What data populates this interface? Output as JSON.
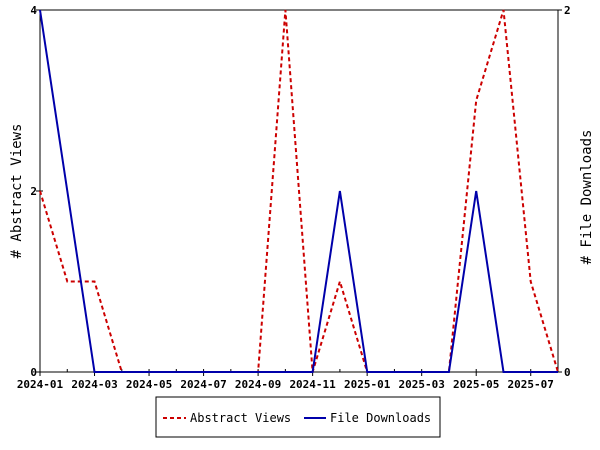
{
  "chart_data": {
    "type": "line",
    "x": [
      "2024-01",
      "2024-02",
      "2024-03",
      "2024-04",
      "2024-05",
      "2024-06",
      "2024-07",
      "2024-08",
      "2024-09",
      "2024-10",
      "2024-11",
      "2024-12",
      "2025-01",
      "2025-02",
      "2025-03",
      "2025-04",
      "2025-05",
      "2025-06",
      "2025-07",
      "2025-08"
    ],
    "x_ticks": [
      "2024-01",
      "2024-03",
      "2024-05",
      "2024-07",
      "2024-09",
      "2024-11",
      "2025-01",
      "2025-03",
      "2025-05",
      "2025-07"
    ],
    "y_left": {
      "label": "# Abstract Views",
      "ylim": [
        0,
        4
      ],
      "ticks": [
        "0",
        "2",
        "4"
      ]
    },
    "y_right": {
      "label": "# File Downloads",
      "ylim": [
        0,
        2
      ],
      "ticks": [
        "0",
        "2"
      ]
    },
    "series": [
      {
        "name": "Abstract Views",
        "axis": "left",
        "color": "#cc0000",
        "style": "dashed",
        "values": [
          2,
          1,
          1,
          0,
          0,
          0,
          0,
          0,
          0,
          4,
          0,
          1,
          0,
          0,
          0,
          0,
          3,
          4,
          1,
          0
        ]
      },
      {
        "name": "File Downloads",
        "axis": "right",
        "color": "#0000aa",
        "style": "solid",
        "values": [
          2,
          1,
          0,
          0,
          0,
          0,
          0,
          0,
          0,
          0,
          0,
          1,
          0,
          0,
          0,
          0,
          1,
          0,
          0,
          0
        ]
      }
    ],
    "grid": false,
    "legend": "bottom-center"
  }
}
